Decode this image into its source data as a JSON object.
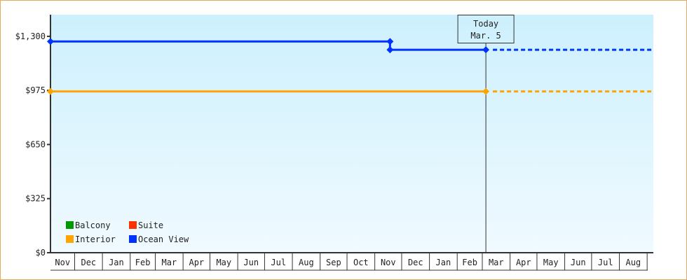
{
  "chart_data": {
    "type": "line",
    "title": "",
    "xlabel": "",
    "ylabel": "",
    "ylim": [
      0,
      1430
    ],
    "y_ticks": [
      {
        "value": 0,
        "label": "$0"
      },
      {
        "value": 325,
        "label": "$325"
      },
      {
        "value": 650,
        "label": "$650"
      },
      {
        "value": 975,
        "label": "$975"
      },
      {
        "value": 1300,
        "label": "$1,300"
      }
    ],
    "categories": [
      "Nov",
      "Dec",
      "Jan",
      "Feb",
      "Mar",
      "Apr",
      "May",
      "Jun",
      "Jul",
      "Aug",
      "Sep",
      "Oct",
      "Nov",
      "Dec",
      "Jan",
      "Feb",
      "Mar",
      "Apr",
      "May",
      "Jun",
      "Jul",
      "Aug"
    ],
    "grid": false,
    "background_gradient": [
      "#cdf0fd",
      "#f0faff"
    ],
    "today_marker": {
      "line1": "Today",
      "line2": "Mar. 5",
      "month_index": 16,
      "day": 5
    },
    "legend": {
      "placement": "bottom-left",
      "items": [
        {
          "name": "Balcony",
          "color": "#009900"
        },
        {
          "name": "Suite",
          "color": "#ff3300"
        },
        {
          "name": "Interior",
          "color": "#ffa500"
        },
        {
          "name": "Ocean View",
          "color": "#0033ff"
        }
      ]
    },
    "series": [
      {
        "name": "Ocean View",
        "color": "#0033ff",
        "points": [
          {
            "month_index": 0,
            "month": "Nov",
            "day": 4,
            "value": 1269
          },
          {
            "month_index": 12,
            "month": "Nov",
            "day": 18,
            "value": 1269
          },
          {
            "month_index": 12,
            "month": "Nov",
            "day": 18,
            "value": 1219
          },
          {
            "month_index": 16,
            "month": "Mar",
            "day": 5,
            "value": 1219
          }
        ],
        "projection_value": 1219
      },
      {
        "name": "Interior",
        "color": "#ffa500",
        "points": [
          {
            "month_index": 0,
            "month": "Nov",
            "day": 4,
            "value": 969
          },
          {
            "month_index": 16,
            "month": "Mar",
            "day": 5,
            "value": 969
          }
        ],
        "projection_value": 969
      }
    ]
  }
}
